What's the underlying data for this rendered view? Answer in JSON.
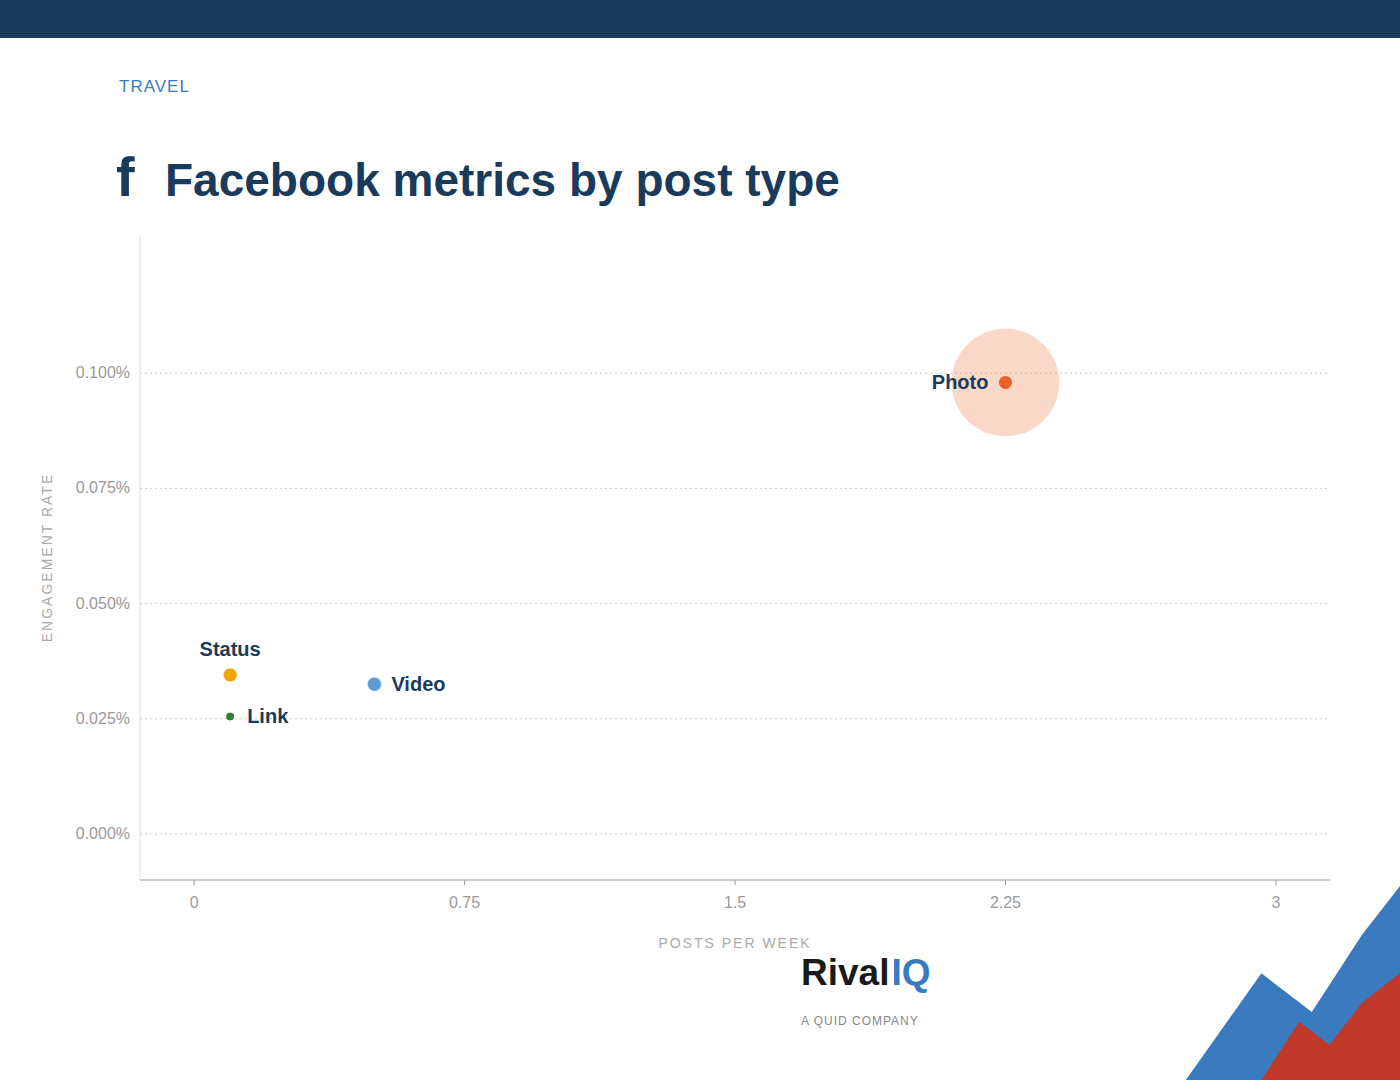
{
  "chart_data": {
    "type": "scatter",
    "title": "Facebook metrics by post type",
    "subtitle": "TRAVEL",
    "xlabel": "POSTS PER WEEK",
    "ylabel": "ENGAGEMENT RATE",
    "labels": [
      "Photo",
      "Video",
      "Status",
      "Link"
    ],
    "x": [
      2.25,
      0.5,
      0.1,
      0.1
    ],
    "values": [
      0.00098,
      0.000325,
      0.000345,
      0.000255
    ],
    "sizes": [
      6000,
      120,
      100,
      30
    ],
    "colors": [
      "#e8622a",
      "#5b9bd5",
      "#f0a500",
      "#2e7d32"
    ],
    "xlim": [
      -0.15,
      3.15
    ],
    "ylim": [
      -0.0001,
      0.0013
    ],
    "xticks": [
      0,
      0.75,
      1.5,
      2.25,
      3
    ],
    "yticks": [
      {
        "value": 0.0,
        "label": "0.000%"
      },
      {
        "value": 0.00025,
        "label": "0.025%"
      },
      {
        "value": 0.0005,
        "label": "0.050%"
      },
      {
        "value": 0.00075,
        "label": "0.075%"
      },
      {
        "value": 0.001,
        "label": "0.100%"
      }
    ],
    "grid": true,
    "annotations": [
      "f",
      "Rival",
      "IQ",
      "A QUID COMPANY"
    ]
  }
}
